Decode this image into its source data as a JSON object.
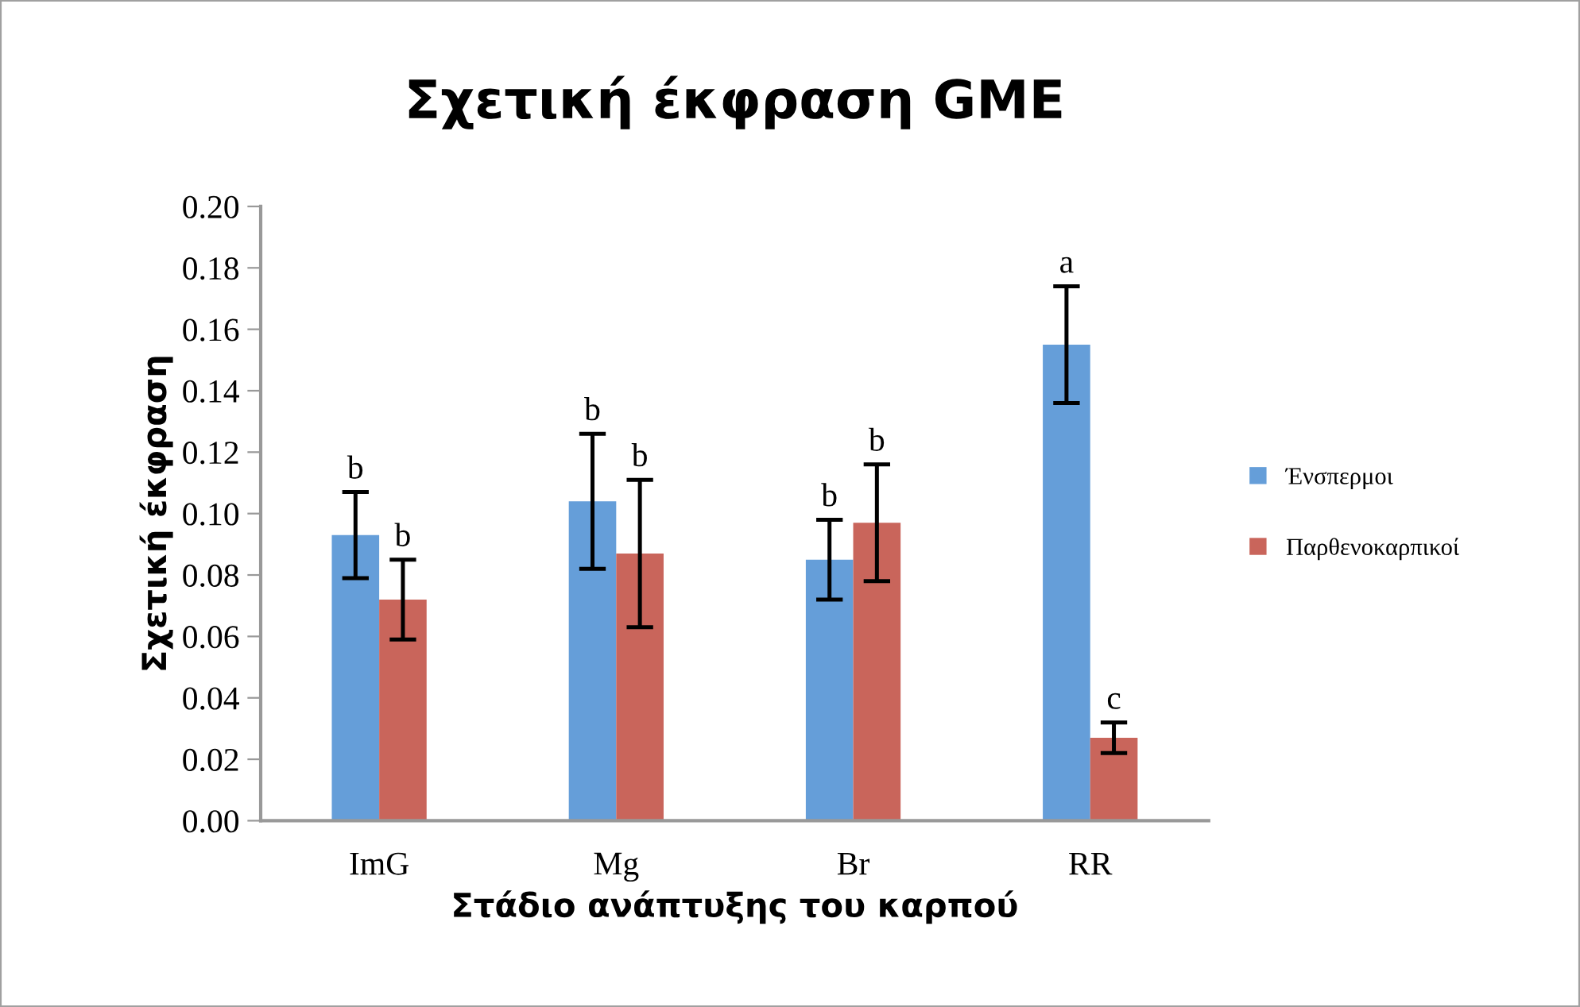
{
  "chart_data": {
    "type": "bar",
    "title": "Σχετική έκφραση GME",
    "xlabel": "Στάδιο ανάπτυξης του καρπού",
    "ylabel": "Σχετική έκφραση",
    "categories": [
      "ImG",
      "Mg",
      "Br",
      "RR"
    ],
    "series": [
      {
        "name": "Ένσπερμοι",
        "color": "#659ed9",
        "values": [
          0.093,
          0.104,
          0.085,
          0.155
        ],
        "errors": [
          0.014,
          0.022,
          0.013,
          0.019
        ],
        "value_labels": [
          "b",
          "b",
          "b",
          "a"
        ]
      },
      {
        "name": "Παρθενοκαρπικοί",
        "color": "#c9655b",
        "values": [
          0.072,
          0.087,
          0.097,
          0.027
        ],
        "errors": [
          0.013,
          0.024,
          0.019,
          0.005
        ],
        "value_labels": [
          "b",
          "b",
          "b",
          "c"
        ]
      }
    ],
    "ylim": [
      0,
      0.2
    ],
    "yticks": [
      {
        "value": 0,
        "label": "0.00"
      },
      {
        "value": 0.02,
        "label": "0.02"
      },
      {
        "value": 0.04,
        "label": "0.04"
      },
      {
        "value": 0.06,
        "label": "0.06"
      },
      {
        "value": 0.08,
        "label": "0.08"
      },
      {
        "value": 0.1,
        "label": "0.10"
      },
      {
        "value": 0.12,
        "label": "0.12"
      },
      {
        "value": 0.14,
        "label": "0.14"
      },
      {
        "value": 0.16,
        "label": "0.16"
      },
      {
        "value": 0.18,
        "label": "0.18"
      },
      {
        "value": 0.2,
        "label": "0.20"
      }
    ],
    "grid": false,
    "legend": "right"
  }
}
